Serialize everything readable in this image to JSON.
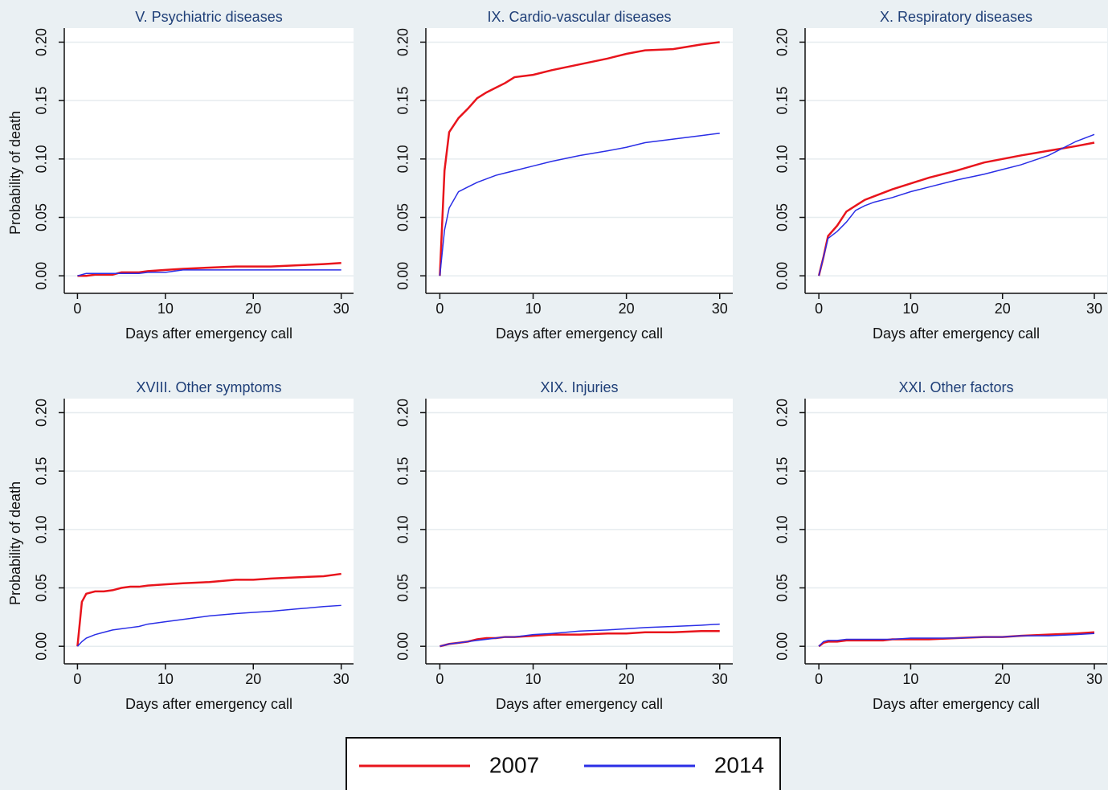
{
  "chart_data": [
    {
      "type": "line",
      "title": "V. Psychiatric diseases",
      "xlabel": "Days after emergency call",
      "ylabel": "Probability of death",
      "x": [
        0,
        0.5,
        1,
        2,
        3,
        4,
        5,
        6,
        7,
        8,
        10,
        12,
        15,
        18,
        20,
        22,
        25,
        28,
        30
      ],
      "series": [
        {
          "name": "2007",
          "color": "#e8141c",
          "values": [
            0,
            0,
            0,
            0.001,
            0.001,
            0.001,
            0.003,
            0.003,
            0.003,
            0.004,
            0.005,
            0.006,
            0.007,
            0.008,
            0.008,
            0.008,
            0.009,
            0.01,
            0.011
          ]
        },
        {
          "name": "2014",
          "color": "#2a2ee6",
          "values": [
            0,
            0.001,
            0.002,
            0.002,
            0.002,
            0.002,
            0.002,
            0.002,
            0.002,
            0.003,
            0.003,
            0.005,
            0.005,
            0.005,
            0.005,
            0.005,
            0.005,
            0.005,
            0.005
          ]
        }
      ],
      "xlim": [
        -1.5,
        31.4
      ],
      "ylim": [
        -0.015,
        0.212
      ],
      "xticks": [
        0,
        10,
        20,
        30
      ],
      "yticks": [
        {
          "value": 0,
          "label": "0.00"
        },
        {
          "value": 0.05,
          "label": "0.05"
        },
        {
          "value": 0.1,
          "label": "0.10"
        },
        {
          "value": 0.15,
          "label": "0.15"
        },
        {
          "value": 0.2,
          "label": "0.20"
        }
      ],
      "grid": true
    },
    {
      "type": "line",
      "title": "IX. Cardio-vascular diseases",
      "xlabel": "Days after emergency call",
      "x": [
        0,
        0.5,
        1,
        2,
        3,
        4,
        5,
        6,
        7,
        8,
        10,
        12,
        15,
        18,
        20,
        22,
        25,
        28,
        30
      ],
      "series": [
        {
          "color": "#e8141c",
          "values": [
            0,
            0.09,
            0.123,
            0.135,
            0.143,
            0.152,
            0.157,
            0.161,
            0.165,
            0.17,
            0.172,
            0.176,
            0.181,
            0.186,
            0.19,
            0.193,
            0.194,
            0.198,
            0.2
          ]
        },
        {
          "color": "#2a2ee6",
          "values": [
            0,
            0.039,
            0.058,
            0.072,
            0.076,
            0.08,
            0.083,
            0.086,
            0.088,
            0.09,
            0.094,
            0.098,
            0.103,
            0.107,
            0.11,
            0.114,
            0.117,
            0.12,
            0.122
          ]
        }
      ],
      "xlim": [
        -1.5,
        31.4
      ],
      "ylim": [
        -0.015,
        0.212
      ],
      "xticks": [
        0,
        10,
        20,
        30
      ],
      "yticks": [
        {
          "value": 0,
          "label": "0.00"
        },
        {
          "value": 0.05,
          "label": "0.05"
        },
        {
          "value": 0.1,
          "label": "0.10"
        },
        {
          "value": 0.15,
          "label": "0.15"
        },
        {
          "value": 0.2,
          "label": "0.20"
        }
      ],
      "grid": true
    },
    {
      "type": "line",
      "title": "X. Respiratory diseases",
      "xlabel": "Days after emergency call",
      "x": [
        0,
        0.5,
        1,
        2,
        3,
        4,
        5,
        6,
        7,
        8,
        10,
        12,
        15,
        18,
        20,
        22,
        25,
        28,
        30
      ],
      "series": [
        {
          "color": "#e8141c",
          "values": [
            0,
            0.016,
            0.034,
            0.043,
            0.055,
            0.06,
            0.065,
            0.068,
            0.071,
            0.074,
            0.079,
            0.084,
            0.09,
            0.097,
            0.1,
            0.103,
            0.107,
            0.111,
            0.114
          ]
        },
        {
          "color": "#2a2ee6",
          "values": [
            0,
            0.016,
            0.032,
            0.038,
            0.046,
            0.056,
            0.06,
            0.063,
            0.065,
            0.067,
            0.072,
            0.076,
            0.082,
            0.087,
            0.091,
            0.095,
            0.103,
            0.115,
            0.121
          ]
        }
      ],
      "xlim": [
        -1.5,
        31.4
      ],
      "ylim": [
        -0.015,
        0.212
      ],
      "xticks": [
        0,
        10,
        20,
        30
      ],
      "yticks": [
        {
          "value": 0,
          "label": "0.00"
        },
        {
          "value": 0.05,
          "label": "0.05"
        },
        {
          "value": 0.1,
          "label": "0.10"
        },
        {
          "value": 0.15,
          "label": "0.15"
        },
        {
          "value": 0.2,
          "label": "0.20"
        }
      ],
      "grid": true
    },
    {
      "type": "line",
      "title": "XVIII. Other symptoms",
      "xlabel": "Days after emergency call",
      "ylabel": "Probability of death",
      "x": [
        0,
        0.5,
        1,
        2,
        3,
        4,
        5,
        6,
        7,
        8,
        10,
        12,
        15,
        18,
        20,
        22,
        25,
        28,
        30
      ],
      "series": [
        {
          "color": "#e8141c",
          "values": [
            0,
            0.038,
            0.045,
            0.047,
            0.047,
            0.048,
            0.05,
            0.051,
            0.051,
            0.052,
            0.053,
            0.054,
            0.055,
            0.057,
            0.057,
            0.058,
            0.059,
            0.06,
            0.062
          ]
        },
        {
          "color": "#2a2ee6",
          "values": [
            0,
            0.004,
            0.007,
            0.01,
            0.012,
            0.014,
            0.015,
            0.016,
            0.017,
            0.019,
            0.021,
            0.023,
            0.026,
            0.028,
            0.029,
            0.03,
            0.032,
            0.034,
            0.035
          ]
        }
      ],
      "xlim": [
        -1.5,
        31.4
      ],
      "ylim": [
        -0.015,
        0.212
      ],
      "xticks": [
        0,
        10,
        20,
        30
      ],
      "yticks": [
        {
          "value": 0,
          "label": "0.00"
        },
        {
          "value": 0.05,
          "label": "0.05"
        },
        {
          "value": 0.1,
          "label": "0.10"
        },
        {
          "value": 0.15,
          "label": "0.15"
        },
        {
          "value": 0.2,
          "label": "0.20"
        }
      ],
      "grid": true
    },
    {
      "type": "line",
      "title": "XIX. Injuries",
      "xlabel": "Days after emergency call",
      "x": [
        0,
        0.5,
        1,
        2,
        3,
        4,
        5,
        6,
        7,
        8,
        10,
        12,
        15,
        18,
        20,
        22,
        25,
        28,
        30
      ],
      "series": [
        {
          "color": "#e8141c",
          "values": [
            0,
            0.001,
            0.002,
            0.003,
            0.004,
            0.006,
            0.007,
            0.007,
            0.008,
            0.008,
            0.009,
            0.01,
            0.01,
            0.011,
            0.011,
            0.012,
            0.012,
            0.013,
            0.013
          ]
        },
        {
          "color": "#2a2ee6",
          "values": [
            0,
            0.001,
            0.002,
            0.003,
            0.004,
            0.005,
            0.006,
            0.007,
            0.008,
            0.008,
            0.01,
            0.011,
            0.013,
            0.014,
            0.015,
            0.016,
            0.017,
            0.018,
            0.019
          ]
        }
      ],
      "xlim": [
        -1.5,
        31.4
      ],
      "ylim": [
        -0.015,
        0.212
      ],
      "xticks": [
        0,
        10,
        20,
        30
      ],
      "yticks": [
        {
          "value": 0,
          "label": "0.00"
        },
        {
          "value": 0.05,
          "label": "0.05"
        },
        {
          "value": 0.1,
          "label": "0.10"
        },
        {
          "value": 0.15,
          "label": "0.15"
        },
        {
          "value": 0.2,
          "label": "0.20"
        }
      ],
      "grid": true
    },
    {
      "type": "line",
      "title": "XXI. Other factors",
      "xlabel": "Days after emergency call",
      "x": [
        0,
        0.5,
        1,
        2,
        3,
        4,
        5,
        6,
        7,
        8,
        10,
        12,
        15,
        18,
        20,
        22,
        25,
        28,
        30
      ],
      "series": [
        {
          "color": "#e8141c",
          "values": [
            0,
            0.003,
            0.004,
            0.004,
            0.005,
            0.005,
            0.005,
            0.005,
            0.005,
            0.006,
            0.006,
            0.006,
            0.007,
            0.008,
            0.008,
            0.009,
            0.01,
            0.011,
            0.012
          ]
        },
        {
          "color": "#2a2ee6",
          "values": [
            0,
            0.004,
            0.005,
            0.005,
            0.006,
            0.006,
            0.006,
            0.006,
            0.006,
            0.006,
            0.007,
            0.007,
            0.007,
            0.008,
            0.008,
            0.009,
            0.009,
            0.01,
            0.011
          ]
        }
      ],
      "xlim": [
        -1.5,
        31.4
      ],
      "ylim": [
        -0.015,
        0.212
      ],
      "xticks": [
        0,
        10,
        20,
        30
      ],
      "yticks": [
        {
          "value": 0,
          "label": "0.00"
        },
        {
          "value": 0.05,
          "label": "0.05"
        },
        {
          "value": 0.1,
          "label": "0.10"
        },
        {
          "value": 0.15,
          "label": "0.15"
        },
        {
          "value": 0.2,
          "label": "0.20"
        }
      ],
      "grid": true
    }
  ]
}
